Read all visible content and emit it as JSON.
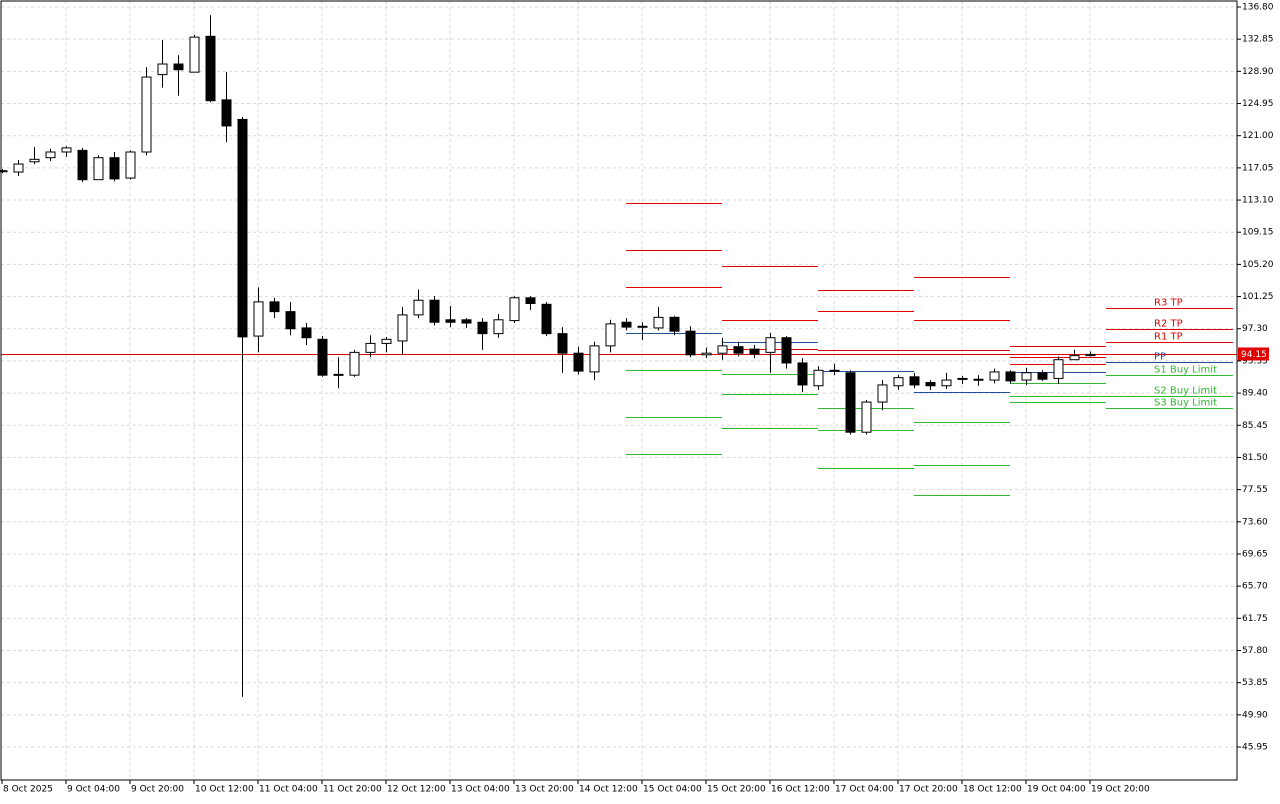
{
  "chart_data": {
    "type": "candlestick",
    "categories": [
      "8 Oct 2025",
      null,
      null,
      null,
      "9 Oct 04:00",
      null,
      null,
      null,
      "9 Oct 20:00",
      null,
      null,
      null,
      "10 Oct 12:00",
      null,
      null,
      null,
      "11 Oct 04:00",
      null,
      null,
      null,
      "11 Oct 20:00",
      null,
      null,
      null,
      "12 Oct 12:00",
      null,
      null,
      null,
      "13 Oct 04:00",
      null,
      null,
      null,
      "13 Oct 20:00",
      null,
      null,
      null,
      "14 Oct 12:00",
      null,
      null,
      null,
      "15 Oct 04:00",
      null,
      null,
      null,
      "15 Oct 20:00",
      null,
      null,
      null,
      "16 Oct 12:00",
      null,
      null,
      null,
      "17 Oct 04:00",
      null,
      null,
      null,
      "17 Oct 20:00",
      null,
      null,
      null,
      "18 Oct 12:00",
      null,
      null,
      null,
      "19 Oct 04:00",
      null,
      null,
      null,
      "19 Oct 20:00"
    ],
    "open": [
      116.6,
      116.54,
      117.8,
      118.3,
      119.0,
      119.2,
      115.6,
      118.3,
      115.8,
      119.0,
      128.5,
      129.8,
      128.8,
      133.2,
      125.4,
      123.0,
      96.4,
      100.6,
      99.4,
      97.4,
      96.0,
      91.6,
      91.6,
      94.4,
      95.5,
      95.8,
      99.0,
      100.8,
      98.4,
      98.4,
      98.1,
      96.7,
      98.3,
      101.1,
      100.3,
      96.7,
      94.3,
      92.0,
      95.2,
      98.1,
      97.6,
      97.4,
      98.7,
      97.0,
      94.1,
      94.3,
      95.1,
      94.8,
      94.4,
      96.2,
      93.1,
      90.3,
      92.2,
      91.9,
      84.6,
      88.3,
      90.3,
      91.4,
      90.7,
      90.3,
      91.1,
      91.0,
      91.0,
      92.0,
      91.0,
      91.9,
      91.2,
      93.5,
      94.0
    ],
    "high": [
      116.9,
      118.02,
      119.6,
      119.4,
      119.7,
      119.5,
      118.6,
      119.0,
      119.2,
      129.4,
      132.75,
      130.9,
      133.4,
      135.8,
      128.8,
      123.3,
      102.4,
      101.1,
      100.6,
      98.0,
      96.4,
      93.8,
      94.7,
      96.5,
      96.3,
      99.97,
      102.1,
      101.3,
      100.1,
      98.6,
      98.6,
      99.1,
      101.3,
      101.3,
      100.6,
      97.5,
      95.1,
      95.7,
      98.4,
      98.6,
      98.1,
      99.97,
      98.9,
      97.6,
      95.0,
      96.2,
      95.7,
      95.3,
      96.8,
      96.4,
      93.7,
      92.7,
      93.0,
      92.2,
      88.55,
      91.0,
      91.6,
      91.9,
      91.0,
      91.9,
      91.5,
      91.6,
      92.4,
      92.2,
      92.5,
      92.2,
      93.9,
      94.7,
      94.5
    ],
    "low": [
      116.4,
      116.05,
      117.5,
      117.9,
      118.4,
      115.3,
      115.6,
      115.4,
      115.6,
      118.6,
      126.9,
      125.9,
      128.8,
      125.1,
      120.2,
      52.1,
      94.4,
      98.6,
      96.5,
      95.3,
      91.4,
      90.0,
      91.4,
      93.8,
      94.4,
      94.1,
      98.6,
      97.7,
      97.5,
      97.4,
      94.7,
      96.2,
      98.0,
      99.6,
      96.4,
      91.9,
      91.7,
      91.0,
      94.4,
      97.1,
      95.9,
      97.1,
      96.5,
      93.8,
      93.7,
      93.5,
      93.9,
      93.7,
      91.9,
      92.4,
      89.5,
      89.8,
      91.6,
      84.3,
      84.3,
      87.3,
      89.8,
      90.0,
      89.8,
      89.9,
      90.5,
      90.3,
      90.6,
      90.6,
      90.4,
      90.9,
      90.5,
      93.5,
      93.9
    ],
    "close": [
      116.7,
      117.52,
      118.1,
      119.0,
      119.5,
      115.6,
      118.3,
      115.7,
      119.0,
      128.2,
      129.8,
      129.1,
      133.1,
      125.3,
      122.2,
      96.3,
      100.6,
      99.4,
      97.3,
      96.2,
      91.6,
      91.7,
      94.4,
      95.5,
      96.0,
      99.0,
      100.8,
      98.1,
      98.1,
      98.0,
      96.7,
      98.4,
      101.1,
      100.4,
      96.7,
      94.3,
      92.1,
      95.2,
      97.9,
      97.5,
      97.5,
      98.7,
      97.0,
      94.1,
      94.3,
      95.2,
      94.3,
      94.2,
      96.2,
      93.1,
      90.4,
      92.2,
      92.1,
      84.6,
      88.3,
      90.4,
      91.3,
      90.4,
      90.3,
      91.0,
      91.2,
      91.1,
      92.0,
      90.9,
      91.9,
      91.1,
      93.5,
      94.0,
      94.15
    ],
    "ylim": [
      41.9,
      137.66
    ],
    "yticks": [
      {
        "value": 136.8,
        "label": "136.80"
      },
      132.85,
      {
        "value": 128.9,
        "label": "128.90"
      },
      124.95,
      {
        "value": 121.0,
        "label": "121.00"
      },
      117.05,
      {
        "value": 113.1,
        "label": "113.10"
      },
      109.15,
      {
        "value": 105.2,
        "label": "105.20"
      },
      101.25,
      {
        "value": 97.3,
        "label": "97.30"
      },
      93.35,
      {
        "value": 89.4,
        "label": "89.40"
      },
      85.45,
      {
        "value": 81.5,
        "label": "81.50"
      },
      77.55,
      {
        "value": 73.6,
        "label": "73.60"
      },
      69.65,
      {
        "value": 65.7,
        "label": "65.70"
      },
      61.75,
      {
        "value": 57.8,
        "label": "57.80"
      },
      53.85,
      {
        "value": 49.9,
        "label": "49.90"
      },
      45.95
    ],
    "grid": true,
    "up_color": "#ffffff",
    "down_color": "#000000",
    "level_colors": [
      "#e00000",
      "#e00000",
      "#e00000",
      "#1f4e9c",
      "#2eb82e",
      "#2eb82e",
      "#2eb82e"
    ],
    "level_labels": [
      "R3 TP",
      "R2 TP",
      "R1 TP",
      "PP",
      "S1 Buy Limit",
      "S2 Buy Limit",
      "S3 Buy Limit"
    ],
    "pivots": [
      {
        "start": 39,
        "end": 45,
        "levels": [
          112.7,
          107.0,
          102.4,
          96.8,
          92.2,
          86.5,
          81.9
        ]
      },
      {
        "start": 45,
        "end": 51,
        "levels": [
          105.0,
          98.4,
          94.8,
          95.7,
          91.7,
          89.3,
          85.1
        ]
      },
      {
        "start": 51,
        "end": 57,
        "levels": [
          102.1,
          99.5,
          94.7,
          92.1,
          87.6,
          84.9,
          80.2
        ]
      },
      {
        "start": 57,
        "end": 63,
        "levels": [
          103.7,
          98.4,
          94.7,
          89.5,
          85.8,
          80.6,
          76.9
        ]
      },
      {
        "start": 63,
        "end": 69,
        "levels": [
          95.2,
          93.8,
          93.0,
          92.0,
          90.6,
          89.0,
          88.3
        ]
      },
      {
        "start": 69,
        "end": 77,
        "levels": [
          99.8,
          97.3,
          95.7,
          93.2,
          91.6,
          89.0,
          87.6
        ]
      }
    ],
    "last_price": 94.15,
    "last_price_color": "#e00000"
  }
}
